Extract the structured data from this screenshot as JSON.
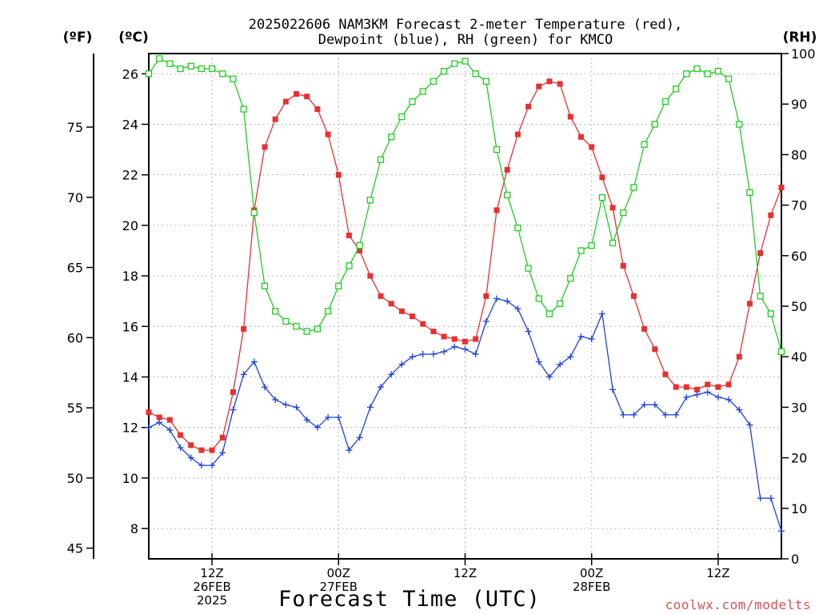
{
  "chart_data": {
    "type": "line",
    "title_line1": "2025022606 NAM3KM Forecast 2-meter Temperature (red),",
    "title_line2": "Dewpoint (blue), RH (green) for KMCO",
    "xlabel": "Forecast Time (UTC)",
    "credit": "coolwx.com/modelts",
    "units": {
      "fahrenheit": "(ºF)",
      "celsius": "(ºC)",
      "rh": "(RH)"
    },
    "time_axis": {
      "start": "2025-02-26T06Z",
      "end": "2025-02-28T18Z",
      "step_hours": 1
    },
    "x_ticks": [
      {
        "hours": 6,
        "labels": [
          "12Z",
          "26FEB",
          "2025"
        ]
      },
      {
        "hours": 18,
        "labels": [
          "00Z",
          "27FEB"
        ]
      },
      {
        "hours": 30,
        "labels": [
          "12Z"
        ]
      },
      {
        "hours": 42,
        "labels": [
          "00Z",
          "28FEB"
        ]
      },
      {
        "hours": 54,
        "labels": [
          "12Z"
        ]
      }
    ],
    "celsius_axis": {
      "range": [
        6.8,
        26.8
      ],
      "ticks": [
        8,
        10,
        12,
        14,
        16,
        18,
        20,
        22,
        24,
        26
      ]
    },
    "fahrenheit_axis": {
      "ticks": [
        45,
        50,
        55,
        60,
        65,
        70,
        75
      ]
    },
    "rh_axis": {
      "range": [
        0,
        100
      ],
      "ticks": [
        0,
        10,
        20,
        30,
        40,
        50,
        60,
        70,
        80,
        90,
        100
      ]
    },
    "grid": true,
    "colors": {
      "temperature": "#e83030",
      "dewpoint": "#2040e0",
      "rh": "#20cc20",
      "credit": "#e05050"
    },
    "series": [
      {
        "key": "temperature",
        "axis": "celsius",
        "values": [
          12.6,
          12.4,
          12.3,
          11.7,
          11.3,
          11.1,
          11.1,
          11.6,
          13.4,
          15.9,
          20.6,
          23.1,
          24.2,
          24.9,
          25.2,
          25.1,
          24.6,
          23.6,
          22.0,
          19.6,
          19.0,
          18.0,
          17.2,
          16.9,
          16.6,
          16.4,
          16.1,
          15.8,
          15.6,
          15.5,
          15.4,
          15.5,
          17.2,
          20.6,
          22.2,
          23.6,
          24.7,
          25.5,
          25.7,
          25.6,
          24.3,
          23.5,
          23.1,
          21.9,
          20.7,
          18.4,
          17.2,
          15.9,
          15.1,
          14.1,
          13.6,
          13.6,
          13.5,
          13.7,
          13.6,
          13.7,
          14.8,
          16.9,
          18.9,
          20.4,
          21.5
        ]
      },
      {
        "key": "dewpoint",
        "axis": "celsius",
        "values": [
          12.0,
          12.2,
          11.9,
          11.2,
          10.8,
          10.5,
          10.5,
          11.0,
          12.7,
          14.1,
          14.6,
          13.6,
          13.1,
          12.9,
          12.8,
          12.3,
          12.0,
          12.4,
          12.4,
          11.1,
          11.6,
          12.8,
          13.6,
          14.1,
          14.5,
          14.8,
          14.9,
          14.9,
          15.0,
          15.2,
          15.1,
          14.9,
          16.2,
          17.1,
          17.0,
          16.7,
          15.8,
          14.6,
          14.0,
          14.5,
          14.8,
          15.6,
          15.5,
          16.5,
          13.5,
          12.5,
          12.5,
          12.9,
          12.9,
          12.5,
          12.5,
          13.2,
          13.3,
          13.4,
          13.2,
          13.1,
          12.7,
          12.1,
          9.2,
          9.2,
          7.9
        ]
      },
      {
        "key": "rh",
        "axis": "rh",
        "values": [
          96,
          99,
          98,
          97,
          97.5,
          97,
          97,
          96,
          95,
          89,
          68.5,
          54,
          49,
          47,
          46,
          45,
          45.5,
          49,
          54,
          58,
          62,
          71,
          79,
          83.5,
          87.5,
          90.5,
          92.5,
          94.5,
          96.5,
          98,
          98.5,
          96,
          94.5,
          81,
          72,
          65.5,
          57.5,
          51.5,
          48.5,
          50.5,
          55.5,
          61,
          62,
          71.5,
          62.5,
          68.5,
          73.5,
          82,
          86,
          90.5,
          93,
          96,
          97,
          96,
          96.5,
          95,
          86,
          72.5,
          52,
          48.5,
          41
        ]
      }
    ]
  }
}
